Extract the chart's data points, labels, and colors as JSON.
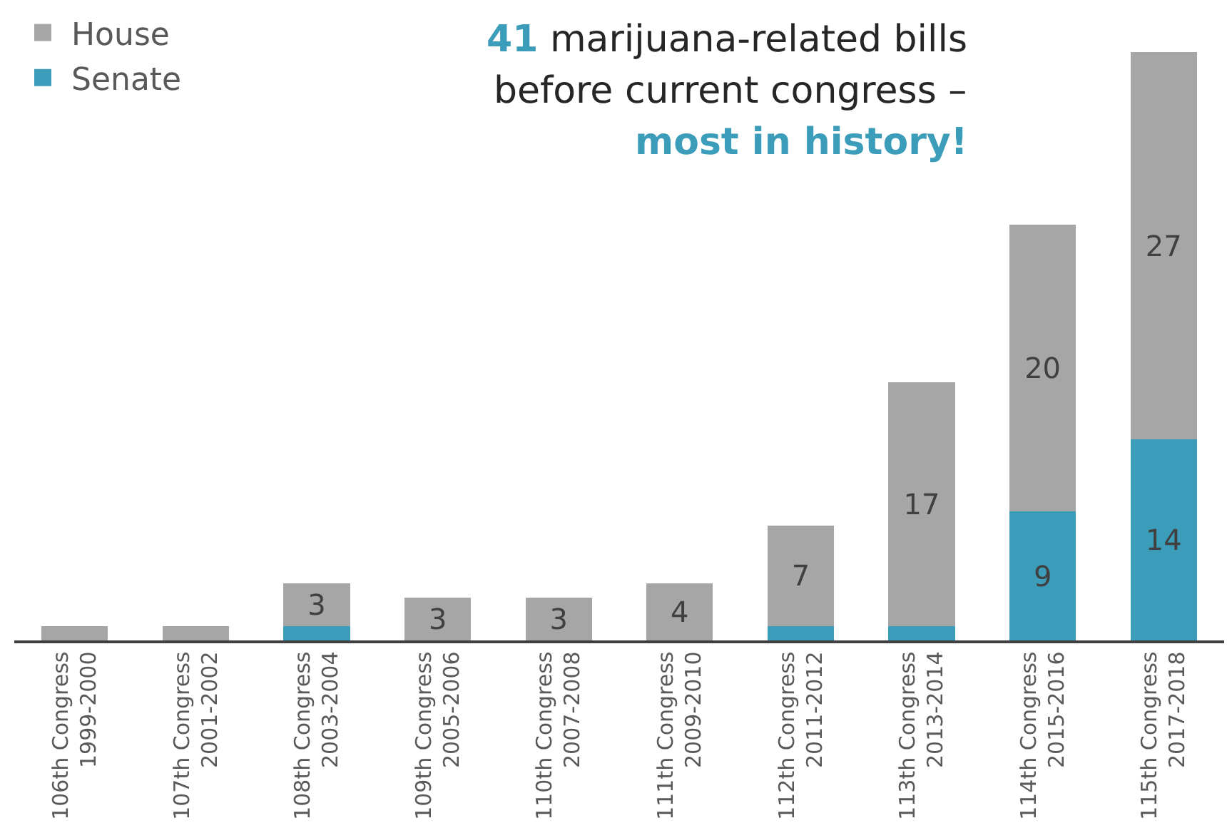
{
  "chart_data": {
    "type": "bar",
    "stacked": true,
    "legend": "top left",
    "categories": [
      "106th Congress\n1999-2000",
      "107th Congress\n2001-2002",
      "108th Congress\n2003-2004",
      "109th Congress\n2005-2006",
      "110th Congress\n2007-2008",
      "111th Congress\n2009-2010",
      "112th Congress\n2011-2012",
      "113th Congress\n2013-2014",
      "114th Congress\n2015-2016",
      "115th Congress\n2017-2018"
    ],
    "series": [
      {
        "name": "Senate",
        "color": "#3c9dbb",
        "values": [
          0,
          0,
          1,
          0,
          0,
          0,
          1,
          1,
          9,
          14
        ],
        "value_labels": [
          null,
          null,
          null,
          null,
          null,
          null,
          null,
          null,
          "9",
          "14"
        ]
      },
      {
        "name": "House",
        "color": "#a6a6a6",
        "values": [
          1,
          1,
          3,
          3,
          3,
          4,
          7,
          17,
          20,
          27
        ],
        "value_labels": [
          null,
          null,
          "3",
          "3",
          "3",
          "4",
          "7",
          "17",
          "20",
          "27"
        ]
      }
    ],
    "annotations": [
      "41 marijuana-related bills",
      "before current congress –",
      "most in history!"
    ]
  }
}
